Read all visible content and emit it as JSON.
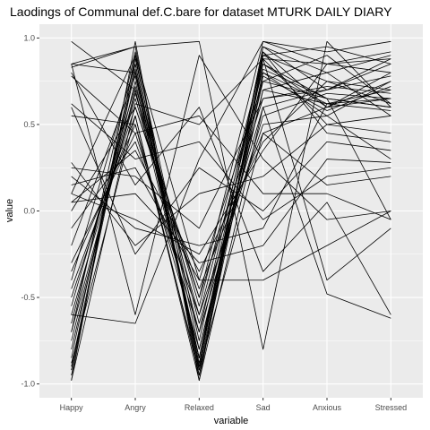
{
  "chart_data": {
    "type": "line",
    "title": "Laodings of Communal def.C.bare for dataset MTURK DAILY DIARY",
    "xlabel": "variable",
    "ylabel": "value",
    "categories": [
      "Happy",
      "Angry",
      "Relaxed",
      "Sad",
      "Anxious",
      "Stressed"
    ],
    "ylim": [
      -1.08,
      1.08
    ],
    "yticks": [
      -1.0,
      -0.5,
      0.0,
      0.5,
      1.0
    ],
    "ytick_labels": [
      "-1.0",
      "-0.5",
      "0.0",
      "0.5",
      "1.0"
    ],
    "grid": true,
    "background": "#ebebeb",
    "grid_color": "#ffffff",
    "line_color": "#000000",
    "series": [
      {
        "values": [
          0.85,
          0.8,
          -0.9,
          0.95,
          0.7,
          0.85
        ]
      },
      {
        "values": [
          0.83,
          0.95,
          -0.95,
          0.88,
          0.85,
          0.8
        ]
      },
      {
        "values": [
          0.98,
          0.7,
          -0.85,
          0.92,
          0.6,
          0.65
        ]
      },
      {
        "values": [
          -0.98,
          0.98,
          -0.98,
          0.9,
          0.95,
          0.85
        ]
      },
      {
        "values": [
          -0.95,
          0.9,
          -0.92,
          0.85,
          0.65,
          0.6
        ]
      },
      {
        "values": [
          -0.9,
          0.85,
          -0.88,
          0.8,
          0.55,
          0.75
        ]
      },
      {
        "values": [
          -0.85,
          0.88,
          -0.8,
          0.75,
          0.9,
          0.62
        ]
      },
      {
        "values": [
          -0.8,
          0.75,
          -0.85,
          0.7,
          0.8,
          0.55
        ]
      },
      {
        "values": [
          -0.75,
          0.7,
          -0.7,
          0.9,
          0.75,
          0.7
        ]
      },
      {
        "values": [
          -0.7,
          0.92,
          -0.75,
          0.85,
          0.6,
          0.8
        ]
      },
      {
        "values": [
          -0.65,
          0.8,
          -0.65,
          0.6,
          0.7,
          0.88
        ]
      },
      {
        "values": [
          -0.6,
          0.65,
          -0.6,
          0.82,
          0.65,
          0.6
        ]
      },
      {
        "values": [
          -0.55,
          0.72,
          -0.55,
          0.88,
          0.5,
          0.45
        ]
      },
      {
        "values": [
          -0.5,
          0.6,
          -0.5,
          0.65,
          0.72,
          0.68
        ]
      },
      {
        "values": [
          -0.45,
          0.55,
          -0.95,
          0.78,
          0.58,
          0.72
        ]
      },
      {
        "values": [
          -0.4,
          0.85,
          -0.9,
          0.95,
          0.8,
          0.9
        ]
      },
      {
        "values": [
          -0.35,
          0.5,
          -0.8,
          0.7,
          0.62,
          0.58
        ]
      },
      {
        "values": [
          -0.3,
          0.45,
          -0.7,
          0.55,
          0.68,
          0.65
        ]
      },
      {
        "values": [
          -0.2,
          0.78,
          -0.85,
          0.92,
          0.45,
          0.4
        ]
      },
      {
        "values": [
          -0.1,
          0.4,
          -0.6,
          0.5,
          0.55,
          0.3
        ]
      },
      {
        "values": [
          0.0,
          0.6,
          -0.45,
          0.45,
          0.6,
          0.75
        ]
      },
      {
        "values": [
          0.05,
          0.35,
          -0.35,
          0.4,
          0.75,
          0.62
        ]
      },
      {
        "values": [
          0.1,
          -0.05,
          -0.25,
          0.35,
          0.85,
          0.88
        ]
      },
      {
        "values": [
          0.2,
          -0.1,
          -0.2,
          -0.1,
          0.62,
          0.65
        ]
      },
      {
        "values": [
          0.25,
          0.2,
          -0.1,
          0.65,
          0.7,
          0.78
        ]
      },
      {
        "values": [
          0.28,
          -0.2,
          0.1,
          0.2,
          0.5,
          0.55
        ]
      },
      {
        "values": [
          0.6,
          -0.25,
          0.25,
          0.0,
          0.4,
          0.35
        ]
      },
      {
        "values": [
          0.62,
          0.3,
          0.4,
          -0.05,
          0.2,
          0.25
        ]
      },
      {
        "values": [
          0.78,
          0.45,
          0.55,
          0.1,
          0.1,
          -0.05
        ]
      },
      {
        "values": [
          0.8,
          0.15,
          0.6,
          -0.35,
          0.05,
          -0.6
        ]
      },
      {
        "values": [
          0.85,
          -0.6,
          0.9,
          0.3,
          -0.05,
          0.0
        ]
      },
      {
        "values": [
          0.85,
          0.95,
          0.98,
          -0.8,
          0.98,
          0.6
        ]
      },
      {
        "values": [
          -0.6,
          -0.65,
          0.3,
          0.98,
          0.85,
          0.92
        ]
      },
      {
        "values": [
          -0.98,
          0.62,
          0.5,
          0.88,
          -0.4,
          -0.1
        ]
      },
      {
        "values": [
          0.05,
          0.1,
          -0.3,
          -0.2,
          0.3,
          0.28
        ]
      },
      {
        "values": [
          0.15,
          0.25,
          -0.4,
          -0.4,
          -0.2,
          0.0
        ]
      },
      {
        "values": [
          -0.88,
          0.55,
          -0.98,
          0.6,
          -0.48,
          -0.62
        ]
      },
      {
        "values": [
          0.55,
          0.5,
          -0.92,
          0.45,
          0.15,
          0.2
        ]
      },
      {
        "values": [
          -0.7,
          0.68,
          -0.5,
          0.98,
          0.92,
          0.98
        ]
      },
      {
        "values": [
          -0.92,
          0.82,
          -0.85,
          0.8,
          0.62,
          0.7
        ]
      },
      {
        "values": [
          0.1,
          0.9,
          -0.4,
          0.75,
          0.65,
          -0.05
        ]
      }
    ]
  }
}
